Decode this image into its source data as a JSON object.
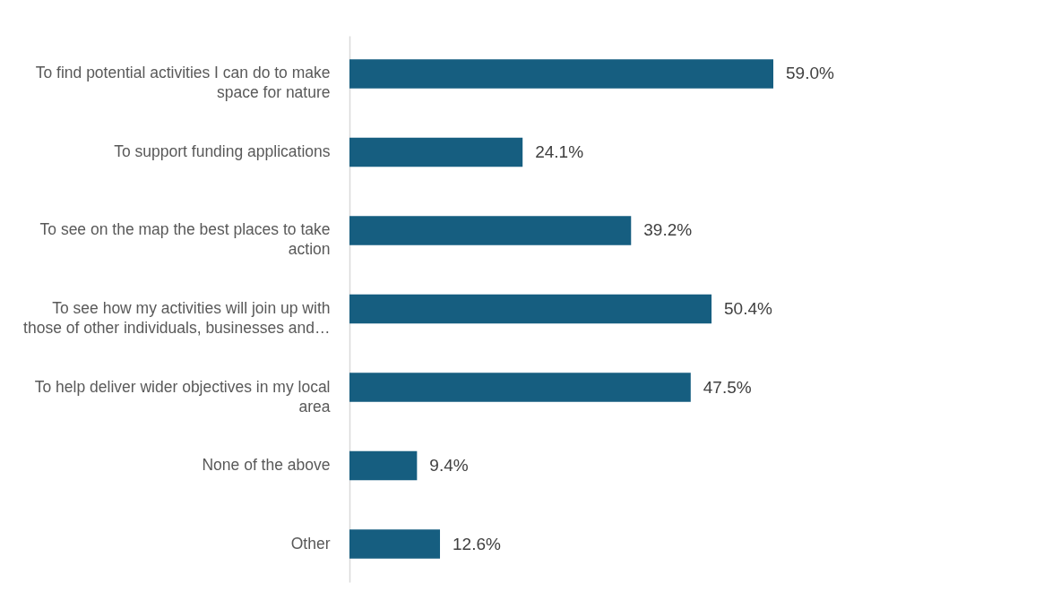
{
  "chart_data": {
    "type": "bar",
    "orientation": "horizontal",
    "categories": [
      "To find potential activities I can do to make space for nature",
      "To support funding applications",
      "To see on the map the best places to take action",
      "To see how my activities will join up with those of other individuals, businesses and…",
      "To help deliver wider objectives in my local area",
      "None of the above",
      "Other"
    ],
    "values": [
      59.0,
      24.1,
      39.2,
      50.4,
      47.5,
      9.4,
      12.6
    ],
    "value_labels": [
      "59.0%",
      "24.1%",
      "39.2%",
      "50.4%",
      "47.5%",
      "9.4%",
      "12.6%"
    ],
    "color": "#165e80"
  }
}
